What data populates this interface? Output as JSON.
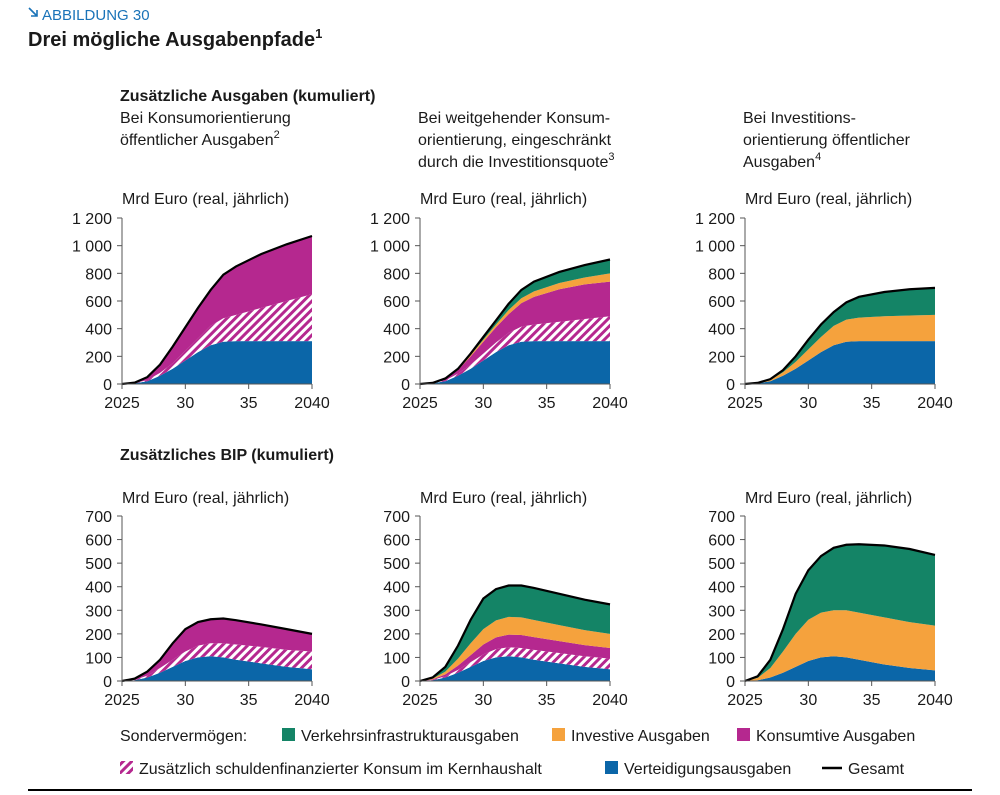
{
  "figure": {
    "label": "ABBILDUNG 30",
    "title": "Drei mögliche Ausgabenpfade",
    "title_note": "1"
  },
  "sections": [
    "Zusätzliche Ausgaben (kumuliert)",
    "Zusätzliches BIP (kumuliert)"
  ],
  "legend": {
    "title": "Sondervermögen:"
  },
  "chart_data": [
    {
      "type": "area",
      "stacked": true,
      "title_lines": [
        "Bei Konsumorientierung",
        "öffentlicher Ausgaben"
      ],
      "title_note": "2",
      "y_label": "Mrd Euro (real, jährlich)",
      "x": [
        2025,
        2026,
        2027,
        2028,
        2029,
        2030,
        2031,
        2032,
        2033,
        2034,
        2036,
        2038,
        2040
      ],
      "xlim": [
        2025,
        2040
      ],
      "xticks": [
        2025,
        {
          "value": 2030,
          "label": "30"
        },
        {
          "value": 2035,
          "label": "35"
        },
        2040
      ],
      "ylim": [
        0,
        1200
      ],
      "yticks": [
        0,
        200,
        400,
        600,
        800,
        {
          "value": 1000,
          "label": "1 000"
        },
        {
          "value": 1200,
          "label": "1 200"
        }
      ],
      "series": [
        {
          "name": "Verteidigungsausgaben",
          "color": "#0b66a8",
          "values": [
            0,
            5,
            20,
            60,
            110,
            170,
            230,
            280,
            305,
            310,
            310,
            310,
            310
          ]
        },
        {
          "name": "Zusätzlich schuldenfinanzierter Konsum im Kernhaushalt",
          "color": "#b5288f",
          "pattern": "hatch",
          "values": [
            0,
            2,
            8,
            20,
            40,
            70,
            100,
            140,
            170,
            190,
            240,
            290,
            340
          ]
        },
        {
          "name": "Konsumtive Ausgaben",
          "color": "#b5288f",
          "values": [
            0,
            3,
            22,
            60,
            120,
            170,
            220,
            260,
            315,
            350,
            390,
            410,
            420
          ]
        }
      ],
      "total": {
        "name": "Gesamt",
        "color": "#000000",
        "values": [
          0,
          10,
          50,
          140,
          270,
          410,
          550,
          680,
          790,
          850,
          940,
          1010,
          1070
        ]
      }
    },
    {
      "type": "area",
      "stacked": true,
      "title_lines": [
        "Bei weitgehender Konsum-",
        "orientierung, eingeschränkt",
        "durch die Investitionsquote"
      ],
      "title_note": "3",
      "y_label": "Mrd Euro (real, jährlich)",
      "x": [
        2025,
        2026,
        2027,
        2028,
        2029,
        2030,
        2031,
        2032,
        2033,
        2034,
        2036,
        2038,
        2040
      ],
      "xlim": [
        2025,
        2040
      ],
      "xticks": [
        2025,
        {
          "value": 2030,
          "label": "30"
        },
        {
          "value": 2035,
          "label": "35"
        },
        2040
      ],
      "ylim": [
        0,
        1200
      ],
      "yticks": [
        0,
        200,
        400,
        600,
        800,
        {
          "value": 1000,
          "label": "1 000"
        },
        {
          "value": 1200,
          "label": "1 200"
        }
      ],
      "series": [
        {
          "name": "Verteidigungsausgaben",
          "color": "#0b66a8",
          "values": [
            0,
            5,
            20,
            60,
            110,
            170,
            230,
            280,
            305,
            310,
            310,
            310,
            310
          ]
        },
        {
          "name": "Zusätzlich schuldenfinanzierter Konsum im Kernhaushalt",
          "color": "#b5288f",
          "pattern": "hatch",
          "values": [
            0,
            2,
            6,
            15,
            30,
            50,
            70,
            90,
            110,
            120,
            140,
            160,
            180
          ]
        },
        {
          "name": "Konsumtive Ausgaben",
          "color": "#b5288f",
          "values": [
            0,
            1,
            10,
            25,
            60,
            85,
            110,
            135,
            170,
            200,
            235,
            250,
            250
          ]
        },
        {
          "name": "Investive Ausgaben",
          "color": "#f5a23d",
          "values": [
            0,
            0,
            2,
            5,
            10,
            15,
            20,
            30,
            35,
            40,
            45,
            50,
            60
          ]
        },
        {
          "name": "Verkehrsinfrastrukturausgaben",
          "color": "#148466",
          "values": [
            0,
            0,
            2,
            5,
            10,
            20,
            30,
            45,
            60,
            70,
            80,
            90,
            100
          ]
        }
      ],
      "total": {
        "name": "Gesamt",
        "color": "#000000",
        "values": [
          0,
          8,
          40,
          110,
          220,
          340,
          460,
          580,
          680,
          740,
          810,
          860,
          900
        ]
      }
    },
    {
      "type": "area",
      "stacked": true,
      "title_lines": [
        "Bei Investitions-",
        "orientierung öffentlicher",
        "Ausgaben"
      ],
      "title_note": "4",
      "y_label": "Mrd Euro (real, jährlich)",
      "x": [
        2025,
        2026,
        2027,
        2028,
        2029,
        2030,
        2031,
        2032,
        2033,
        2034,
        2036,
        2038,
        2040
      ],
      "xlim": [
        2025,
        2040
      ],
      "xticks": [
        2025,
        {
          "value": 2030,
          "label": "30"
        },
        {
          "value": 2035,
          "label": "35"
        },
        2040
      ],
      "ylim": [
        0,
        1200
      ],
      "yticks": [
        0,
        200,
        400,
        600,
        800,
        {
          "value": 1000,
          "label": "1 000"
        },
        {
          "value": 1200,
          "label": "1 200"
        }
      ],
      "series": [
        {
          "name": "Verteidigungsausgaben",
          "color": "#0b66a8",
          "values": [
            0,
            5,
            20,
            60,
            110,
            170,
            230,
            280,
            305,
            310,
            310,
            310,
            310
          ]
        },
        {
          "name": "Investive Ausgaben",
          "color": "#f5a23d",
          "values": [
            0,
            2,
            8,
            25,
            50,
            80,
            110,
            140,
            160,
            170,
            180,
            185,
            190
          ]
        },
        {
          "name": "Verkehrsinfrastrukturausgaben",
          "color": "#148466",
          "values": [
            0,
            1,
            7,
            15,
            40,
            70,
            90,
            100,
            125,
            150,
            175,
            190,
            195
          ]
        }
      ],
      "total": {
        "name": "Gesamt",
        "color": "#000000",
        "values": [
          0,
          8,
          35,
          100,
          200,
          320,
          430,
          520,
          590,
          630,
          665,
          685,
          695
        ]
      }
    },
    {
      "type": "area",
      "stacked": true,
      "y_label": "Mrd Euro (real, jährlich)",
      "x": [
        2025,
        2026,
        2027,
        2028,
        2029,
        2030,
        2031,
        2032,
        2033,
        2034,
        2036,
        2038,
        2040
      ],
      "xlim": [
        2025,
        2040
      ],
      "xticks": [
        2025,
        {
          "value": 2030,
          "label": "30"
        },
        {
          "value": 2035,
          "label": "35"
        },
        2040
      ],
      "ylim": [
        0,
        700
      ],
      "yticks": [
        0,
        100,
        200,
        300,
        400,
        500,
        600,
        700
      ],
      "series": [
        {
          "name": "Verteidigungsausgaben",
          "color": "#0b66a8",
          "values": [
            0,
            3,
            15,
            35,
            60,
            85,
            100,
            105,
            100,
            90,
            75,
            60,
            50
          ]
        },
        {
          "name": "Zusätzlich schuldenfinanzierter Konsum im Kernhaushalt",
          "color": "#b5288f",
          "pattern": "hatch",
          "values": [
            0,
            2,
            8,
            20,
            30,
            40,
            50,
            55,
            60,
            65,
            70,
            72,
            75
          ]
        },
        {
          "name": "Konsumtive Ausgaben",
          "color": "#b5288f",
          "values": [
            0,
            5,
            17,
            35,
            70,
            95,
            100,
            102,
            105,
            103,
            95,
            88,
            75
          ]
        }
      ],
      "total": {
        "name": "Gesamt",
        "color": "#000000",
        "values": [
          0,
          10,
          40,
          90,
          160,
          220,
          250,
          262,
          265,
          258,
          240,
          220,
          200
        ]
      }
    },
    {
      "type": "area",
      "stacked": true,
      "y_label": "Mrd Euro (real, jährlich)",
      "x": [
        2025,
        2026,
        2027,
        2028,
        2029,
        2030,
        2031,
        2032,
        2033,
        2034,
        2036,
        2038,
        2040
      ],
      "xlim": [
        2025,
        2040
      ],
      "xticks": [
        2025,
        {
          "value": 2030,
          "label": "30"
        },
        {
          "value": 2035,
          "label": "35"
        },
        2040
      ],
      "ylim": [
        0,
        700
      ],
      "yticks": [
        0,
        100,
        200,
        300,
        400,
        500,
        600,
        700
      ],
      "series": [
        {
          "name": "Verteidigungsausgaben",
          "color": "#0b66a8",
          "values": [
            0,
            3,
            15,
            35,
            60,
            85,
            100,
            105,
            100,
            90,
            75,
            60,
            50
          ]
        },
        {
          "name": "Zusätzlich schuldenfinanzierter Konsum im Kernhaushalt",
          "color": "#b5288f",
          "pattern": "hatch",
          "values": [
            0,
            2,
            5,
            12,
            20,
            28,
            35,
            38,
            40,
            42,
            44,
            45,
            45
          ]
        },
        {
          "name": "Konsumtive Ausgaben",
          "color": "#b5288f",
          "values": [
            0,
            2,
            8,
            18,
            30,
            42,
            50,
            54,
            55,
            54,
            50,
            47,
            45
          ]
        },
        {
          "name": "Investive Ausgaben",
          "color": "#f5a23d",
          "values": [
            0,
            3,
            12,
            30,
            50,
            65,
            72,
            75,
            75,
            73,
            68,
            64,
            60
          ]
        },
        {
          "name": "Verkehrsinfrastrukturausgaben",
          "color": "#148466",
          "values": [
            0,
            5,
            20,
            55,
            100,
            130,
            133,
            133,
            135,
            136,
            133,
            129,
            125
          ]
        }
      ],
      "total": {
        "name": "Gesamt",
        "color": "#000000",
        "values": [
          0,
          15,
          60,
          150,
          260,
          350,
          390,
          405,
          405,
          395,
          370,
          345,
          325
        ]
      }
    },
    {
      "type": "area",
      "stacked": true,
      "y_label": "Mrd Euro (real, jährlich)",
      "x": [
        2025,
        2026,
        2027,
        2028,
        2029,
        2030,
        2031,
        2032,
        2033,
        2034,
        2036,
        2038,
        2040
      ],
      "xlim": [
        2025,
        2040
      ],
      "xticks": [
        2025,
        {
          "value": 2030,
          "label": "30"
        },
        {
          "value": 2035,
          "label": "35"
        },
        2040
      ],
      "ylim": [
        0,
        700
      ],
      "yticks": [
        0,
        100,
        200,
        300,
        400,
        500,
        600,
        700
      ],
      "series": [
        {
          "name": "Verteidigungsausgaben",
          "color": "#0b66a8",
          "values": [
            0,
            3,
            15,
            35,
            60,
            85,
            100,
            105,
            100,
            90,
            70,
            55,
            45
          ]
        },
        {
          "name": "Investive Ausgaben",
          "color": "#f5a23d",
          "values": [
            0,
            10,
            40,
            90,
            140,
            175,
            190,
            195,
            200,
            200,
            200,
            195,
            190
          ]
        },
        {
          "name": "Verkehrsinfrastrukturausgaben",
          "color": "#148466",
          "values": [
            0,
            7,
            35,
            95,
            170,
            210,
            240,
            265,
            278,
            290,
            305,
            310,
            300
          ]
        }
      ],
      "total": {
        "name": "Gesamt",
        "color": "#000000",
        "values": [
          0,
          20,
          90,
          220,
          370,
          470,
          530,
          565,
          578,
          580,
          575,
          560,
          535
        ]
      }
    }
  ]
}
